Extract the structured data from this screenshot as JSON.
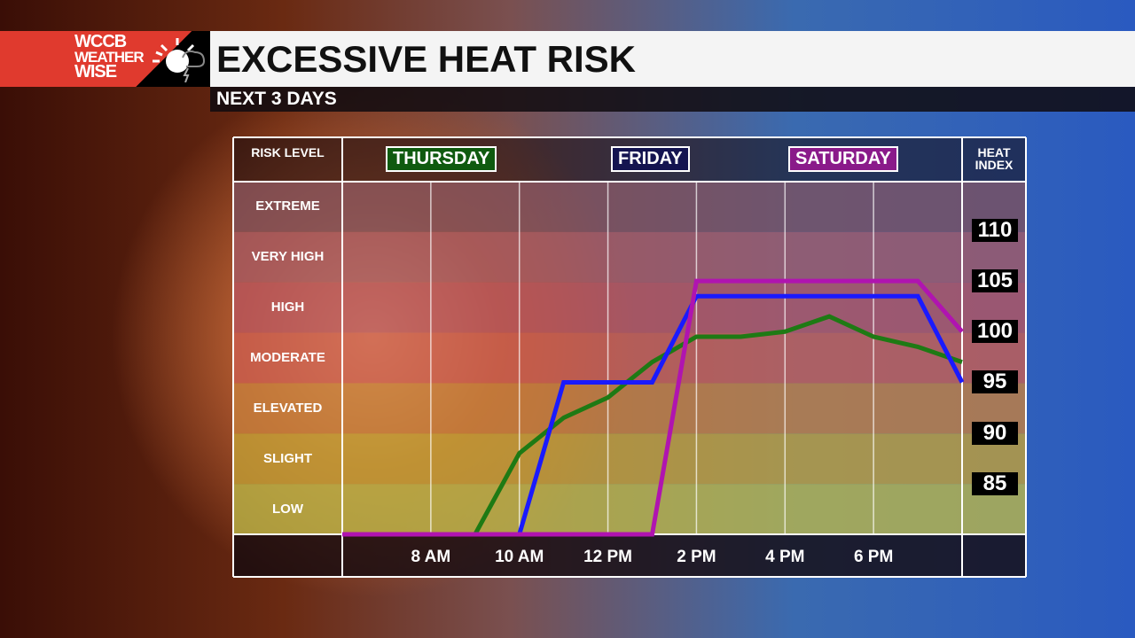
{
  "header": {
    "logo_line1": "WCCB",
    "logo_line2": "WEATHER",
    "logo_line3": "WISE",
    "title": "EXCESSIVE HEAT RISK",
    "subtitle": "NEXT 3 DAYS"
  },
  "chart_data": {
    "type": "line",
    "title": "EXCESSIVE HEAT RISK",
    "left_header": "RISK LEVEL",
    "right_header": "HEAT INDEX",
    "risk_levels": [
      "EXTREME",
      "VERY HIGH",
      "HIGH",
      "MODERATE",
      "ELEVATED",
      "SLIGHT",
      "LOW"
    ],
    "band_colors": [
      "#7d4f5c",
      "#a65a64",
      "#b8545e",
      "#cc5e50",
      "#c8803c",
      "#c4a236",
      "#bcb848"
    ],
    "heat_index_ticks": [
      110,
      105,
      100,
      95,
      90,
      85
    ],
    "x_ticks": [
      {
        "hour": 8,
        "label": "8 AM"
      },
      {
        "hour": 10,
        "label": "10 AM"
      },
      {
        "hour": 12,
        "label": "12 PM"
      },
      {
        "hour": 14,
        "label": "2 PM"
      },
      {
        "hour": 16,
        "label": "4 PM"
      },
      {
        "hour": 18,
        "label": "6 PM"
      }
    ],
    "xlim": [
      6,
      20
    ],
    "ylim": [
      80,
      114.8
    ],
    "series": [
      {
        "name": "THURSDAY",
        "color": "#1e7a14",
        "box": "#0f5a0f",
        "points": [
          [
            6,
            80
          ],
          [
            9,
            80
          ],
          [
            10,
            88
          ],
          [
            11,
            91.5
          ],
          [
            12,
            93.5
          ],
          [
            13,
            97
          ],
          [
            14,
            99.5
          ],
          [
            15,
            99.5
          ],
          [
            16,
            100
          ],
          [
            17,
            101.5
          ],
          [
            18,
            99.5
          ],
          [
            19,
            98.5
          ],
          [
            20,
            97
          ]
        ]
      },
      {
        "name": "FRIDAY",
        "color": "#1a1aff",
        "box": "#141450",
        "points": [
          [
            6,
            80
          ],
          [
            10,
            80
          ],
          [
            11,
            95
          ],
          [
            13,
            95
          ],
          [
            14,
            103.5
          ],
          [
            19,
            103.5
          ],
          [
            20,
            95
          ]
        ]
      },
      {
        "name": "SATURDAY",
        "color": "#b014b0",
        "box": "#8a1a8a",
        "points": [
          [
            6,
            80
          ],
          [
            13,
            80
          ],
          [
            14,
            105
          ],
          [
            19,
            105
          ],
          [
            20,
            100
          ]
        ]
      }
    ]
  }
}
